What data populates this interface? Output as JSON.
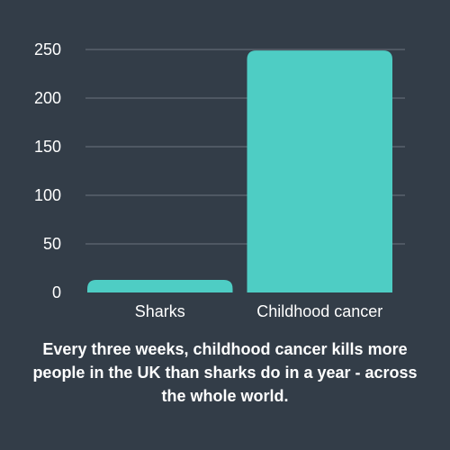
{
  "chart_data": {
    "type": "bar",
    "categories": [
      "Sharks",
      "Childhood cancer"
    ],
    "values": [
      13,
      249
    ],
    "ylim": [
      0,
      250
    ],
    "yticks": [
      0,
      50,
      100,
      150,
      200,
      250
    ],
    "grid": true,
    "bar_color": "#4ecdc4",
    "grid_color": "#6b747e",
    "background": "#333d48"
  },
  "caption": "Every three weeks, childhood cancer kills more people in the UK than sharks do in a year - across the whole world."
}
